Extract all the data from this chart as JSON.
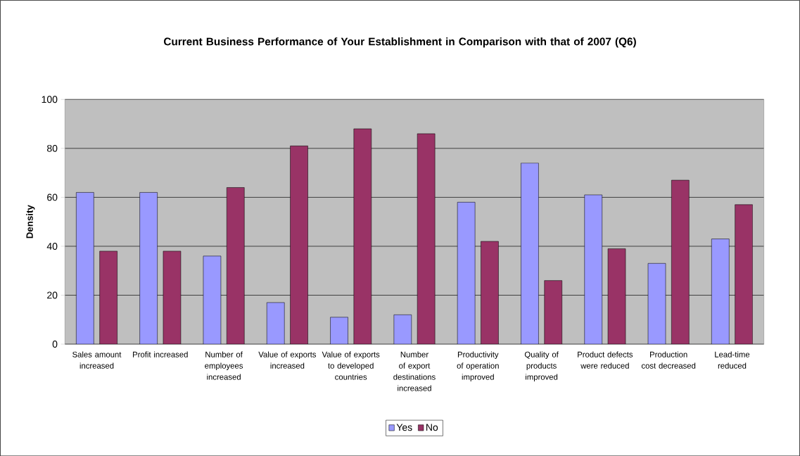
{
  "chart_data": {
    "type": "bar",
    "title": "Current Business Performance of Your Establishment in Comparison with that of 2007 (Q6)",
    "ylabel": "Density",
    "categories": [
      "Sales amount increased",
      "Profit increased",
      "Number of employees increased",
      "Value of exports increased",
      "Value of exports to developed countries",
      "Number of export destinations increased",
      "Productivity of operation improved",
      "Quality of products improved",
      "Product defects were reduced",
      "Production cost decreased",
      "Lead-time reduced"
    ],
    "series": [
      {
        "name": "Yes",
        "color": "#9999ff",
        "values": [
          62,
          62,
          36,
          17,
          11,
          12,
          58,
          74,
          61,
          33,
          43
        ]
      },
      {
        "name": "No",
        "color": "#993366",
        "values": [
          38,
          38,
          64,
          81,
          88,
          86,
          42,
          26,
          39,
          67,
          57
        ]
      }
    ],
    "ylim": [
      0,
      100
    ],
    "yticks": [
      0,
      20,
      40,
      60,
      80,
      100
    ],
    "grid": "y",
    "legend": "bottom"
  }
}
